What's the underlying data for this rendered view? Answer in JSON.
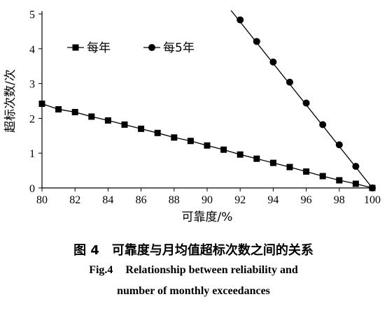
{
  "chart_data": {
    "type": "line",
    "title": "",
    "xlabel": "可靠度/%",
    "ylabel": "超标次数/次",
    "xlim": [
      80,
      100
    ],
    "ylim": [
      0,
      5
    ],
    "x_ticks": [
      "80",
      "82",
      "84",
      "86",
      "88",
      "90",
      "92",
      "94",
      "96",
      "98",
      "100"
    ],
    "y_ticks": [
      "0",
      "1",
      "2",
      "3",
      "4",
      "5"
    ],
    "grid": false,
    "legend_position": "top-left",
    "series": [
      {
        "name": "每年",
        "marker": "square",
        "x": [
          80,
          81,
          82,
          83,
          84,
          85,
          86,
          87,
          88,
          89,
          90,
          91,
          92,
          93,
          94,
          95,
          96,
          97,
          98,
          99,
          100
        ],
        "y": [
          2.42,
          2.26,
          2.18,
          2.05,
          1.94,
          1.82,
          1.7,
          1.58,
          1.45,
          1.35,
          1.22,
          1.1,
          0.96,
          0.84,
          0.72,
          0.6,
          0.47,
          0.34,
          0.22,
          0.12,
          0.0
        ]
      },
      {
        "name": "每5年",
        "marker": "circle",
        "x": [
          92,
          93,
          94,
          95,
          96,
          97,
          98,
          99,
          100
        ],
        "y": [
          4.83,
          4.21,
          3.62,
          3.04,
          2.44,
          1.82,
          1.24,
          0.62,
          0.0
        ],
        "fit_line": {
          "x": [
            91.45,
            100
          ],
          "y": [
            5.1,
            0
          ]
        }
      }
    ]
  },
  "caption": {
    "zh_fig_no": "图 4",
    "zh_text": "可靠度与月均值超标次数之间的关系",
    "en_line1_fig_no": "Fig.4",
    "en_line1_text": "Relationship between reliability and",
    "en_line2": "number of monthly exceedances"
  }
}
